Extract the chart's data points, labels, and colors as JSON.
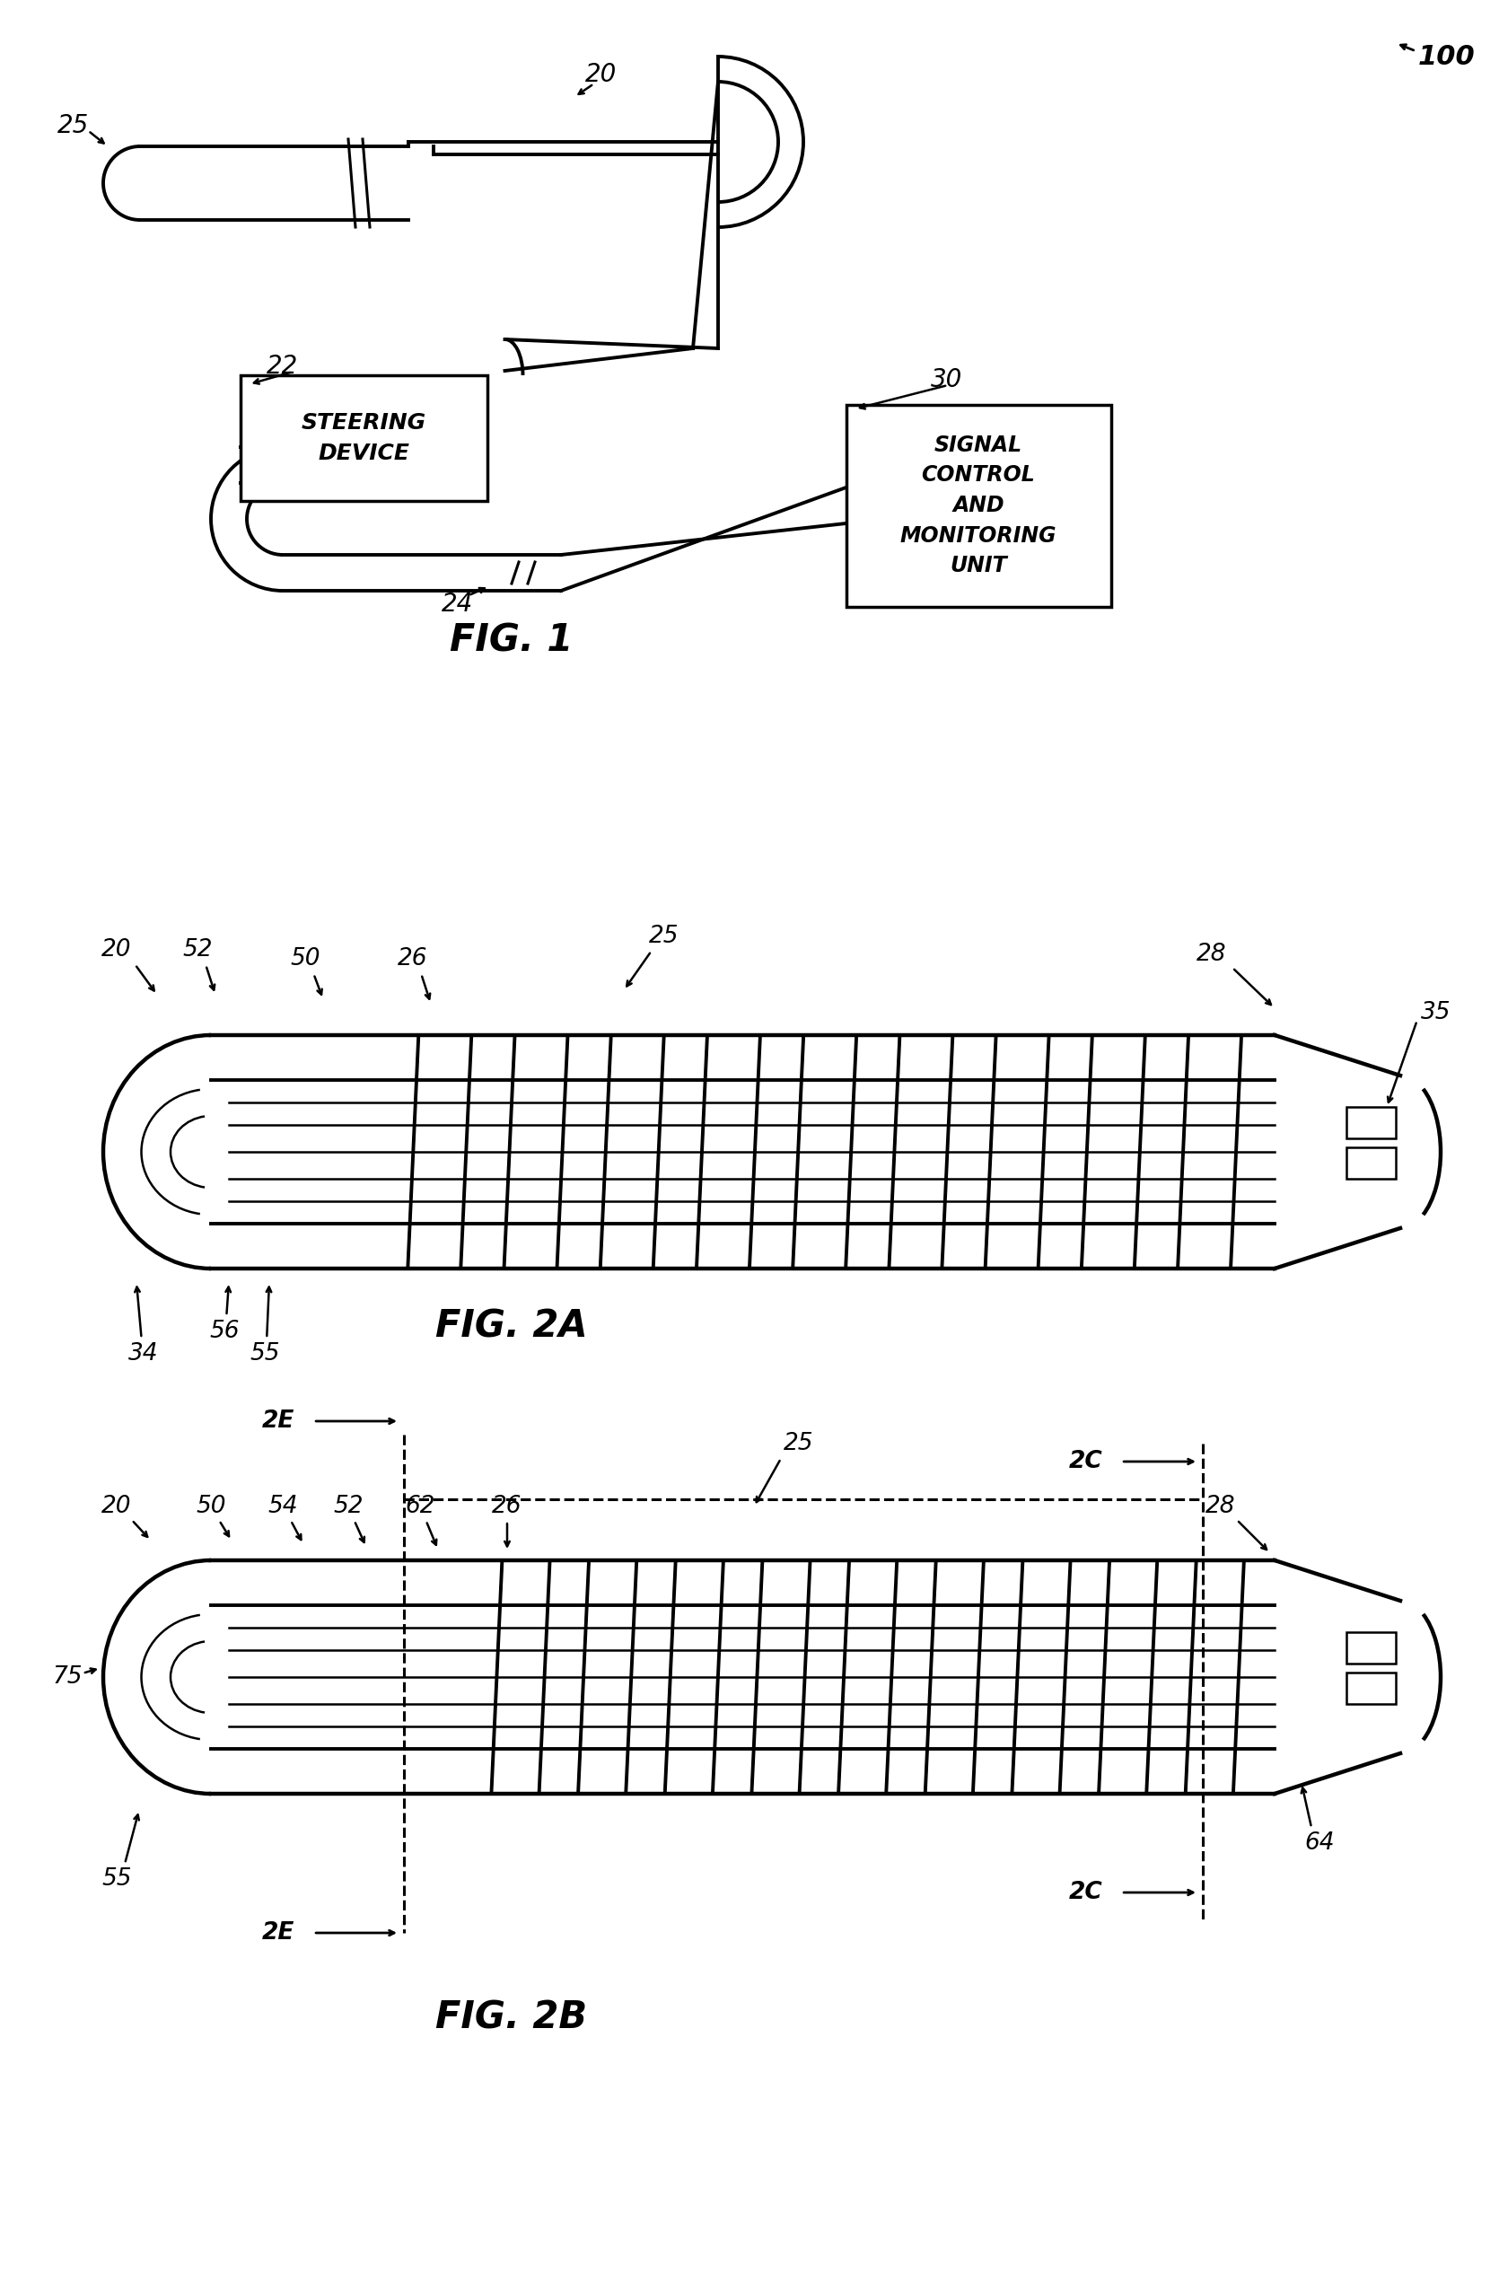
{
  "bg_color": "#ffffff",
  "line_color": "#000000",
  "fig_width": 16.7,
  "fig_height": 25.53,
  "fig1": {
    "label": "FIG. 1",
    "steering_device": "STEERING\nDEVICE",
    "signal_unit": "SIGNAL\nCONTROL\nAND\nMONITORING\nUNIT"
  },
  "fig2a": {
    "label": "FIG. 2A"
  },
  "fig2b": {
    "label": "FIG. 2B"
  }
}
